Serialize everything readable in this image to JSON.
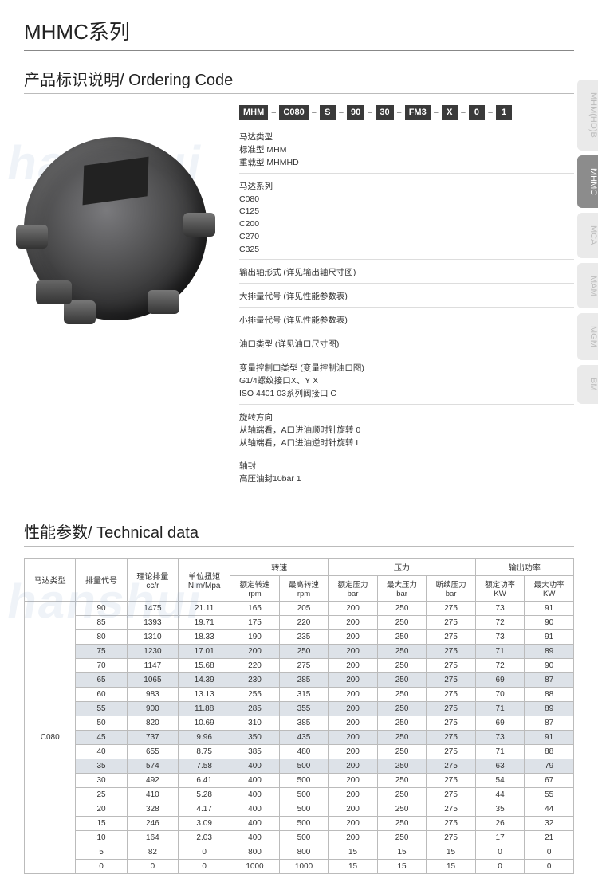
{
  "title": "MHMC系列",
  "ordering_heading": "产品标识说明/ Ordering Code",
  "tech_heading": "性能参数/ Technical data",
  "code_boxes": [
    "MHM",
    "C080",
    "S",
    "90",
    "30",
    "FM3",
    "X",
    "0",
    "1"
  ],
  "tabs": [
    {
      "label": "MHM(HD)B",
      "active": false
    },
    {
      "label": "MHMC",
      "active": true
    },
    {
      "label": "MCA",
      "active": false
    },
    {
      "label": "MAM",
      "active": false
    },
    {
      "label": "MGM",
      "active": false
    },
    {
      "label": "BM",
      "active": false
    }
  ],
  "spec": {
    "motor_type": {
      "label": "马达类型",
      "std": "标准型   MHM",
      "hd": "重载型   MHMHD"
    },
    "series": {
      "label": "马达系列",
      "items": [
        "C080",
        "C125",
        "C200",
        "C270",
        "C325"
      ]
    },
    "shaft": "输出轴形式 (详见输出轴尺寸图)",
    "disp_large": "大排量代号 (详见性能参数表)",
    "disp_small": "小排量代号 (详见性能参数表)",
    "port": "油口类型 (详见油口尺寸图)",
    "var_ctrl": {
      "label": "变量控制口类型 (变量控制油口图)",
      "a": "G1/4螺纹接口X、Y          X",
      "b": "ISO  4401  03系列阀接口    C"
    },
    "rotation": {
      "label": "旋转方向",
      "a": "从轴端看，A口进油顺时针旋转   0",
      "b": "从轴端看，A口进油逆时针旋转   L"
    },
    "seal": {
      "label": "轴封",
      "a": "高压油封10bar   1"
    }
  },
  "table": {
    "group_headers": [
      "马达类型",
      "排量代号",
      "理论排量\ncc/r",
      "单位扭矩\nN.m/Mpa",
      "转速",
      "压力",
      "输出功率"
    ],
    "sub_headers": [
      "额定转速\nrpm",
      "最高转速\nrpm",
      "额定压力\nbar",
      "最大压力\nbar",
      "断续压力\nbar",
      "额定功率\nKW",
      "最大功率\nKW"
    ],
    "motor_type": "C080",
    "rows": [
      {
        "d": [
          90,
          1475,
          "21.11",
          165,
          205,
          200,
          250,
          275,
          73,
          91
        ]
      },
      {
        "d": [
          85,
          1393,
          "19.71",
          175,
          220,
          200,
          250,
          275,
          72,
          90
        ]
      },
      {
        "d": [
          80,
          1310,
          "18.33",
          190,
          235,
          200,
          250,
          275,
          73,
          91
        ]
      },
      {
        "d": [
          75,
          1230,
          "17.01",
          200,
          250,
          200,
          250,
          275,
          71,
          89
        ],
        "hl": true
      },
      {
        "d": [
          70,
          1147,
          "15.68",
          220,
          275,
          200,
          250,
          275,
          72,
          90
        ]
      },
      {
        "d": [
          65,
          1065,
          "14.39",
          230,
          285,
          200,
          250,
          275,
          69,
          87
        ],
        "hl": true
      },
      {
        "d": [
          60,
          983,
          "13.13",
          255,
          315,
          200,
          250,
          275,
          70,
          88
        ]
      },
      {
        "d": [
          55,
          900,
          "11.88",
          285,
          355,
          200,
          250,
          275,
          71,
          89
        ],
        "hl": true
      },
      {
        "d": [
          50,
          820,
          "10.69",
          310,
          385,
          200,
          250,
          275,
          69,
          87
        ]
      },
      {
        "d": [
          45,
          737,
          "9.96",
          350,
          435,
          200,
          250,
          275,
          73,
          91
        ],
        "hl": true
      },
      {
        "d": [
          40,
          655,
          "8.75",
          385,
          480,
          200,
          250,
          275,
          71,
          88
        ]
      },
      {
        "d": [
          35,
          574,
          "7.58",
          400,
          500,
          200,
          250,
          275,
          63,
          79
        ],
        "hl": true
      },
      {
        "d": [
          30,
          492,
          "6.41",
          400,
          500,
          200,
          250,
          275,
          54,
          67
        ]
      },
      {
        "d": [
          25,
          410,
          "5.28",
          400,
          500,
          200,
          250,
          275,
          44,
          55
        ]
      },
      {
        "d": [
          20,
          328,
          "4.17",
          400,
          500,
          200,
          250,
          275,
          35,
          44
        ]
      },
      {
        "d": [
          15,
          246,
          "3.09",
          400,
          500,
          200,
          250,
          275,
          26,
          32
        ]
      },
      {
        "d": [
          10,
          164,
          "2.03",
          400,
          500,
          200,
          250,
          275,
          17,
          21
        ]
      },
      {
        "d": [
          5,
          82,
          "0",
          800,
          800,
          15,
          15,
          15,
          0,
          0
        ]
      },
      {
        "d": [
          0,
          0,
          "0",
          1000,
          1000,
          15,
          15,
          15,
          0,
          0
        ]
      }
    ]
  },
  "colors": {
    "header_border": "#888",
    "row_hl": "#dde2e8",
    "codebox_bg": "#3a3a3a",
    "tab_active": "#8c8c8c",
    "tab_inactive": "#eaeaea"
  }
}
